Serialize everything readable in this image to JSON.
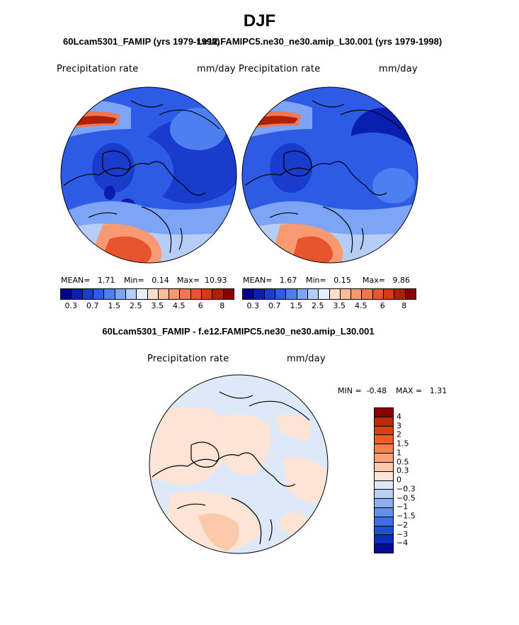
{
  "header": {
    "season": "DJF",
    "left_case": "60Lcam5301_FAMIP (yrs 1979-1998)",
    "right_case": "f.e12.FAMIPC5.ne30_ne30.amip_L30.001 (yrs 1979-1998)",
    "diff_title": "60Lcam5301_FAMIP - f.e12.FAMIPC5.ne30_ne30.amip_L30.001"
  },
  "panels": {
    "left": {
      "var_label": "Precipitation rate",
      "units": "mm/day",
      "mean_label": "MEAN=",
      "mean": "1.71",
      "min_label": "Min=",
      "min": "0.14",
      "max_label": "Max=",
      "max": "10.93"
    },
    "right": {
      "var_label": "Precipitation rate",
      "units": "mm/day",
      "mean_label": "MEAN=",
      "mean": "1.67",
      "min_label": "Min=",
      "min": "0.15",
      "max_label": "Max=",
      "max": "9.86"
    },
    "diff": {
      "var_label": "Precipitation rate",
      "units": "mm/day",
      "min_label": "MIN =",
      "min": "-0.48",
      "max_label": "MAX =",
      "max": "1.31"
    }
  },
  "colorbar_main": {
    "colors": [
      "#00008b",
      "#0a1fb0",
      "#1a3ccc",
      "#2e5be6",
      "#4d7ff0",
      "#7ea5f5",
      "#b5cdf7",
      "#e6effa",
      "#fde0cc",
      "#fbbd9c",
      "#f79a72",
      "#f2764f",
      "#e8542e",
      "#d43a16",
      "#b02008",
      "#880000"
    ],
    "labels": [
      "0.3",
      "0.7",
      "1.5",
      "2.5",
      "3.5",
      "4.5",
      "6",
      "8"
    ]
  },
  "colorbar_diff": {
    "colors": [
      "#880000",
      "#b82a08",
      "#e03c10",
      "#f45a25",
      "#f7804e",
      "#f9a27a",
      "#fcc9aa",
      "#fde4d4",
      "#dde9f8",
      "#b8cff2",
      "#8dafed",
      "#6690e8",
      "#3f6fe3",
      "#1f4fd8",
      "#0b2fbf",
      "#000f8f"
    ],
    "labels": [
      "4",
      "3",
      "2",
      "1.5",
      "1",
      "0.5",
      "0.3",
      "0",
      "-0.3",
      "-0.5",
      "-1",
      "-1.5",
      "-2",
      "-3",
      "-4"
    ]
  }
}
